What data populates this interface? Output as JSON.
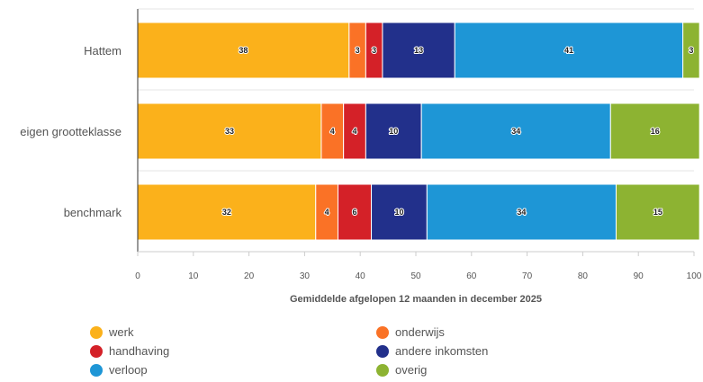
{
  "chart_data": {
    "type": "bar",
    "orientation": "horizontal",
    "stacked": true,
    "categories": [
      "Hattem",
      "eigen grootteklasse",
      "benchmark"
    ],
    "series": [
      {
        "name": "werk",
        "color": "#FBB11B",
        "values": [
          38,
          33,
          32
        ]
      },
      {
        "name": "onderwijs",
        "color": "#FA7226",
        "values": [
          3,
          4,
          4
        ]
      },
      {
        "name": "handhaving",
        "color": "#D42128",
        "values": [
          3,
          4,
          6
        ]
      },
      {
        "name": "andere inkomsten",
        "color": "#22308B",
        "values": [
          13,
          10,
          10
        ]
      },
      {
        "name": "verloop",
        "color": "#1E96D6",
        "values": [
          41,
          34,
          34
        ]
      },
      {
        "name": "overig",
        "color": "#8DB332",
        "values": [
          3,
          16,
          15
        ]
      }
    ],
    "xlabel": "Gemiddelde afgelopen 12 maanden in december 2025",
    "xlim": [
      0,
      100
    ],
    "xticks": [
      0,
      10,
      20,
      30,
      40,
      50,
      60,
      70,
      80,
      90,
      100
    ],
    "grid": true,
    "legend_position": "bottom"
  }
}
